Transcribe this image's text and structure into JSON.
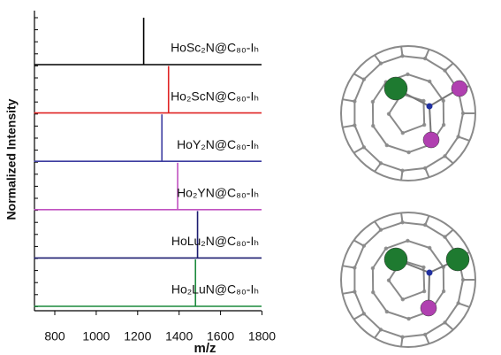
{
  "chart_data": {
    "type": "spectra",
    "x_label": "m/z",
    "y_label": "Normalized Intensity",
    "xlim": [
      700,
      1800
    ],
    "xticks": [
      800,
      1000,
      1200,
      1400,
      1600,
      1800
    ],
    "series": [
      {
        "name": "HoSc₂N@C₈₀-Iₕ",
        "color": "#000000",
        "x": [
          1229
        ],
        "values": [
          1
        ]
      },
      {
        "name": "Ho₂ScN@C₈₀-Iₕ",
        "color": "#e02424",
        "x": [
          1349
        ],
        "values": [
          1
        ]
      },
      {
        "name": "HoY₂N@C₈₀-Iₕ",
        "color": "#3c3ca0",
        "x": [
          1317
        ],
        "values": [
          1
        ]
      },
      {
        "name": "Ho₂YN@C₈₀-Iₕ",
        "color": "#c052c0",
        "x": [
          1393
        ],
        "values": [
          1
        ]
      },
      {
        "name": "HoLu₂N@C₈₀-Iₕ",
        "color": "#1c1c70",
        "x": [
          1489
        ],
        "values": [
          1
        ]
      },
      {
        "name": "Ho₂LuN@C₈₀-Iₕ",
        "color": "#1c8a3c",
        "x": [
          1479
        ],
        "values": [
          1
        ]
      }
    ]
  }
}
